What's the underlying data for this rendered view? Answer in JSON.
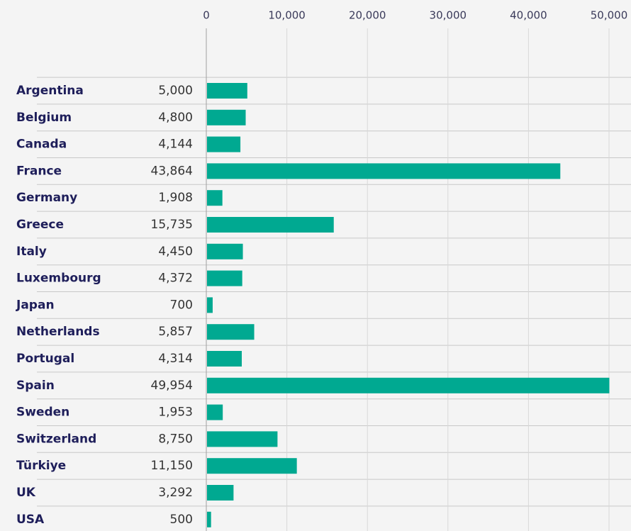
{
  "chart_data": {
    "type": "bar",
    "categories": [
      "Argentina",
      "Belgium",
      "Canada",
      "France",
      "Germany",
      "Greece",
      "Italy",
      "Luxembourg",
      "Japan",
      "Netherlands",
      "Portugal",
      "Spain",
      "Sweden",
      "Switzerland",
      "Türkiye",
      "UK",
      "USA"
    ],
    "values": [
      5000,
      4800,
      4144,
      43864,
      1908,
      15735,
      4450,
      4372,
      700,
      5857,
      4314,
      49954,
      1953,
      8750,
      11150,
      3292,
      500
    ],
    "value_labels": [
      "5,000",
      "4,800",
      "4,144",
      "43,864",
      "1,908",
      "15,735",
      "4,450",
      "4,372",
      "700",
      "5,857",
      "4,314",
      "49,954",
      "1,953",
      "8,750",
      "11,150",
      "3,292",
      "500"
    ],
    "color": "#00a991",
    "xlim": [
      0,
      50000
    ],
    "xticks": [
      0,
      {
        "value": 10000,
        "label": "10,000"
      },
      {
        "value": 20000,
        "label": "20,000"
      },
      {
        "value": 30000,
        "label": "30,000"
      },
      {
        "value": 40000,
        "label": "40,000"
      },
      {
        "value": 50000,
        "label": "50,000"
      }
    ],
    "grid": true
  }
}
